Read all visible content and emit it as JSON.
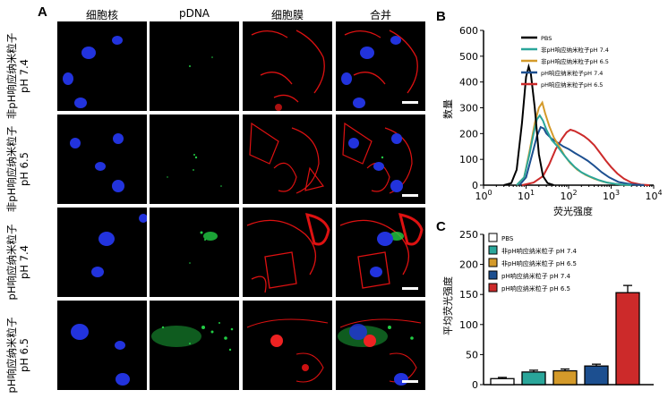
{
  "panelA": {
    "letter": "A",
    "columns": [
      "细胞核",
      "pDNA",
      "细胞膜",
      "合并"
    ],
    "rows": [
      {
        "line1": "非pH响应纳米粒子",
        "line2": "pH 7.4"
      },
      {
        "line1": "非pH响应纳米粒子",
        "line2": "pH 6.5"
      },
      {
        "line1": "pH响应纳米粒子",
        "line2": "pH 7.4"
      },
      {
        "line1": "pH响应纳米粒子",
        "line2": "pH 6.5"
      }
    ]
  },
  "colors": {
    "nucleus": "#2233dd",
    "pdna": "#22cc44",
    "membrane": "#dd1111",
    "PBS": "#000000",
    "non_pH_7.4": "#2aa69a",
    "non_pH_6.5": "#d49a2a",
    "pH_7.4": "#1c4f90",
    "pH_6.5": "#cc2a2a"
  },
  "chart_data": [
    {
      "panel": "B",
      "type": "line",
      "ylabel": "数量",
      "xlabel": "荧光强度",
      "xscale": "log",
      "xlim": [
        1,
        10000
      ],
      "ylim": [
        0,
        600
      ],
      "yticks": [
        0,
        100,
        200,
        300,
        400,
        500,
        600
      ],
      "xtick_labels": [
        {
          "base": "10",
          "exp": "0"
        },
        {
          "base": "10",
          "exp": "1"
        },
        {
          "base": "10",
          "exp": "2"
        },
        {
          "base": "10",
          "exp": "3"
        },
        {
          "base": "10",
          "exp": "4"
        }
      ],
      "legend": "top-right",
      "series": [
        {
          "name": "PBS",
          "color": "#000000",
          "points": [
            [
              3,
              0
            ],
            [
              4.5,
              8
            ],
            [
              6,
              60
            ],
            [
              8,
              240
            ],
            [
              10,
              420
            ],
            [
              11.5,
              460
            ],
            [
              13,
              430
            ],
            [
              16,
              300
            ],
            [
              20,
              120
            ],
            [
              25,
              35
            ],
            [
              32,
              8
            ],
            [
              45,
              0
            ]
          ]
        },
        {
          "name": "非pH响应纳米粒子pH 7.4",
          "color": "#2aa69a",
          "points": [
            [
              6,
              0
            ],
            [
              9,
              30
            ],
            [
              12,
              120
            ],
            [
              15,
              200
            ],
            [
              18,
              255
            ],
            [
              21,
              270
            ],
            [
              25,
              250
            ],
            [
              30,
              215
            ],
            [
              40,
              175
            ],
            [
              55,
              150
            ],
            [
              75,
              120
            ],
            [
              100,
              95
            ],
            [
              140,
              70
            ],
            [
              200,
              50
            ],
            [
              300,
              35
            ],
            [
              500,
              20
            ],
            [
              800,
              10
            ],
            [
              1500,
              3
            ],
            [
              3000,
              0
            ]
          ]
        },
        {
          "name": "非pH响应纳米粒子pH 6.5",
          "color": "#d49a2a",
          "points": [
            [
              6,
              0
            ],
            [
              9,
              30
            ],
            [
              12,
              130
            ],
            [
              16,
              240
            ],
            [
              20,
              300
            ],
            [
              24,
              320
            ],
            [
              28,
              280
            ],
            [
              35,
              230
            ],
            [
              45,
              185
            ],
            [
              60,
              150
            ],
            [
              80,
              115
            ],
            [
              110,
              85
            ],
            [
              160,
              60
            ],
            [
              250,
              40
            ],
            [
              400,
              25
            ],
            [
              700,
              12
            ],
            [
              1300,
              4
            ],
            [
              2500,
              0
            ]
          ]
        },
        {
          "name": "pH响应纳米粒子pH 7.4",
          "color": "#1c4f90",
          "points": [
            [
              7,
              0
            ],
            [
              10,
              30
            ],
            [
              14,
              120
            ],
            [
              18,
              190
            ],
            [
              22,
              225
            ],
            [
              26,
              220
            ],
            [
              30,
              200
            ],
            [
              40,
              180
            ],
            [
              55,
              165
            ],
            [
              75,
              150
            ],
            [
              100,
              140
            ],
            [
              140,
              125
            ],
            [
              200,
              110
            ],
            [
              280,
              95
            ],
            [
              400,
              75
            ],
            [
              600,
              50
            ],
            [
              900,
              30
            ],
            [
              1500,
              12
            ],
            [
              3000,
              3
            ],
            [
              6000,
              0
            ]
          ]
        },
        {
          "name": "pH响应纳米粒子pH 6.5",
          "color": "#cc2a2a",
          "points": [
            [
              8,
              0
            ],
            [
              15,
              10
            ],
            [
              25,
              35
            ],
            [
              35,
              80
            ],
            [
              50,
              140
            ],
            [
              70,
              180
            ],
            [
              90,
              205
            ],
            [
              110,
              215
            ],
            [
              140,
              210
            ],
            [
              180,
              200
            ],
            [
              230,
              190
            ],
            [
              300,
              175
            ],
            [
              400,
              155
            ],
            [
              550,
              125
            ],
            [
              750,
              95
            ],
            [
              1000,
              70
            ],
            [
              1400,
              45
            ],
            [
              2000,
              25
            ],
            [
              3000,
              10
            ],
            [
              5000,
              2
            ],
            [
              8000,
              0
            ]
          ]
        }
      ]
    },
    {
      "panel": "C",
      "type": "bar",
      "ylabel": "平均荧光强度",
      "ylim": [
        0,
        250
      ],
      "yticks": [
        0,
        50,
        100,
        150,
        200,
        250
      ],
      "legend": "top-left",
      "categories": [
        "PBS",
        "非pH响应纳米粒子 pH 7.4",
        "非pH响应纳米粒子 pH 6.5",
        "pH响应纳米粒子 pH 7.4",
        "pH响应纳米粒子 pH 6.5"
      ],
      "values": [
        10,
        21,
        23,
        31,
        153
      ],
      "errors": [
        2,
        3,
        3,
        3,
        12
      ],
      "bar_colors": [
        "#ffffff",
        "#2aa69a",
        "#d49a2a",
        "#1c4f90",
        "#cc2a2a"
      ]
    }
  ],
  "panelB": {
    "letter": "B"
  },
  "panelC": {
    "letter": "C"
  }
}
